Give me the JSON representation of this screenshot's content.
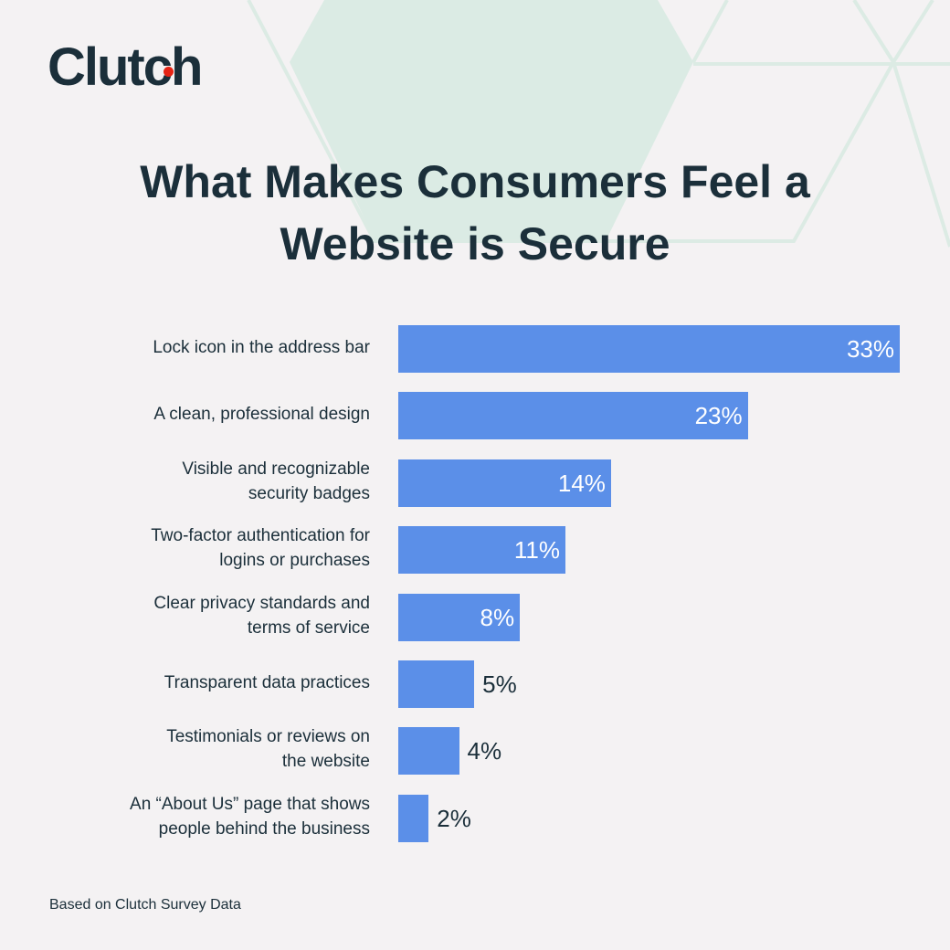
{
  "brand": {
    "logo_text": "Clutch"
  },
  "colors": {
    "background": "#f4f2f3",
    "bar": "#5b8fe8",
    "text": "#1b2f3a",
    "accent": "#e62415",
    "decor": "#dbebe4"
  },
  "chart_data": {
    "type": "bar",
    "orientation": "horizontal",
    "title": "What Makes Consumers Feel a\nWebsite is Secure",
    "categories": [
      "Lock icon in the address bar",
      "A clean, professional design",
      "Visible and recognizable\nsecurity badges",
      "Two-factor authentication for\nlogins or purchases",
      "Clear privacy standards and\nterms of service",
      "Transparent data practices",
      "Testimonials or reviews on\nthe website",
      "An “About Us” page that shows\npeople behind the business"
    ],
    "values": [
      33,
      23,
      14,
      11,
      8,
      5,
      4,
      2
    ],
    "data_labels": [
      "33%",
      "23%",
      "14%",
      "11%",
      "8%",
      "5%",
      "4%",
      "2%"
    ],
    "xlabel": "",
    "ylabel": "",
    "grid": false
  },
  "footer": {
    "source": "Based on Clutch Survey Data"
  }
}
